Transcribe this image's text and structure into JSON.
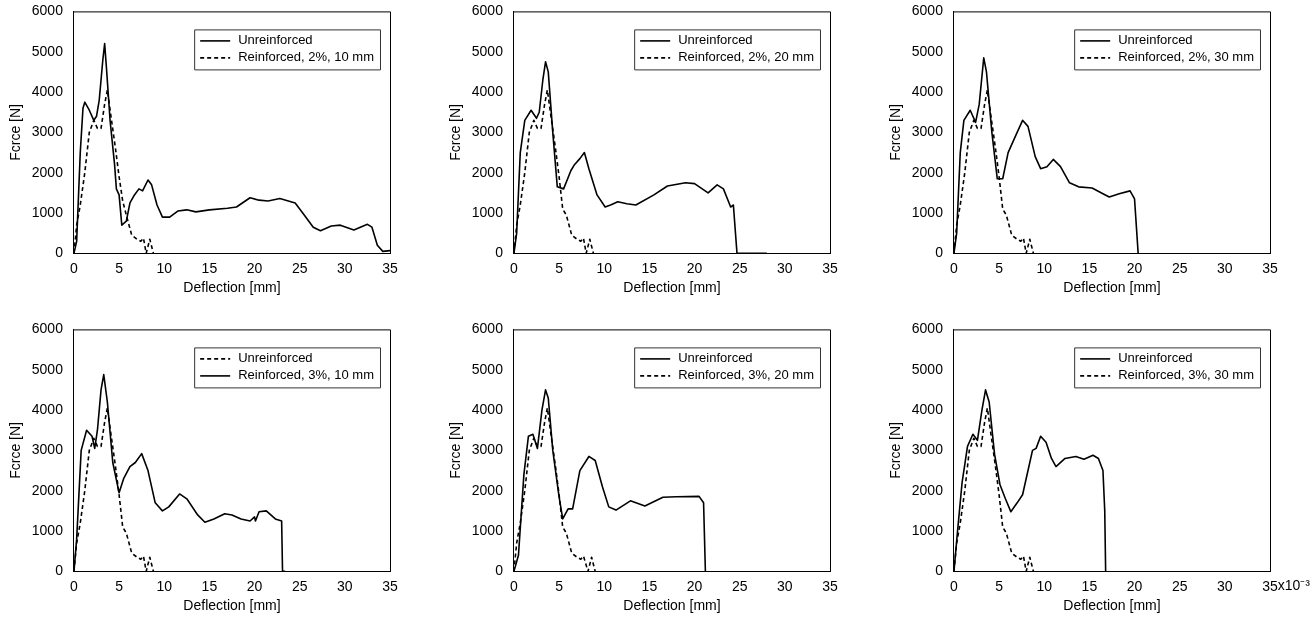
{
  "chart_data": [
    {
      "type": "line",
      "xlabel": "Deflection [mm]",
      "ylabel": "Fcrce [N]",
      "xlim": [
        0,
        35
      ],
      "xticks": [
        0,
        5,
        10,
        15,
        20,
        25,
        30,
        35
      ],
      "ylim": [
        0,
        6000
      ],
      "yticks": [
        0,
        1000,
        2000,
        3000,
        4000,
        5000,
        6000
      ],
      "grid": false,
      "legend": "top right",
      "marker": "none",
      "series": [
        {
          "name": "Unreinforced",
          "color": "#000000",
          "line_style": "solid",
          "x": [
            0,
            0.3,
            0.7,
            1,
            1.2,
            1.7,
            2.2,
            2.5,
            2.8,
            3.2,
            3.4,
            3.6,
            4,
            4.5,
            4.7,
            5,
            5.3,
            5.8,
            6.2,
            6.7,
            7.2,
            7.6,
            8.2,
            8.6,
            9.2,
            9.8,
            10.6,
            11.5,
            12.5,
            13.5,
            15,
            17,
            18,
            19.5,
            20.5,
            21.5,
            22.8,
            24.5,
            25.5,
            26.5,
            27.3,
            28.5,
            29.5,
            31,
            32.5,
            33,
            33.6,
            34.2,
            35
          ],
          "values": [
            0,
            300,
            2500,
            3600,
            3750,
            3550,
            3300,
            3400,
            3800,
            4800,
            5200,
            4600,
            3300,
            2200,
            1600,
            1450,
            700,
            800,
            1250,
            1450,
            1600,
            1550,
            1820,
            1700,
            1200,
            900,
            900,
            1050,
            1080,
            1030,
            1080,
            1120,
            1150,
            1380,
            1320,
            1300,
            1360,
            1250,
            950,
            650,
            560,
            680,
            700,
            580,
            720,
            650,
            200,
            50,
            70
          ]
        },
        {
          "name": "Reinforced, 2%, 10 mm",
          "color": "#000000",
          "line_style": "dashed",
          "x": [
            0,
            0.3,
            0.7,
            1.2,
            1.7,
            2.2,
            2.6,
            3,
            3.4,
            3.7,
            4.1,
            4.6,
            5,
            5.4,
            5.8,
            6.4,
            7,
            7.4,
            7.7,
            8,
            8.4,
            8.8
          ],
          "values": [
            0,
            700,
            1200,
            2000,
            3000,
            3300,
            3100,
            3100,
            3700,
            4050,
            3400,
            2600,
            1900,
            1300,
            950,
            450,
            350,
            300,
            380,
            0,
            350,
            0
          ]
        }
      ]
    },
    {
      "type": "line",
      "xlabel": "Deflection [mm]",
      "ylabel": "Fcrce [N]",
      "xlim": [
        0,
        35
      ],
      "xticks": [
        0,
        5,
        10,
        15,
        20,
        25,
        30,
        35
      ],
      "ylim": [
        0,
        6000
      ],
      "yticks": [
        0,
        1000,
        2000,
        3000,
        4000,
        5000,
        6000
      ],
      "grid": false,
      "legend": "top right",
      "marker": "none",
      "series": [
        {
          "name": "Unreinforced",
          "color": "#000000",
          "line_style": "solid",
          "x": [
            0,
            0.3,
            0.7,
            1.2,
            1.9,
            2.5,
            2.8,
            3.2,
            3.5,
            3.8,
            4.3,
            4.8,
            5.5,
            6.3,
            6.7,
            7.3,
            7.8,
            8.3,
            9.2,
            10.1,
            10.7,
            11.5,
            12.5,
            13.5,
            15.5,
            17,
            19,
            20,
            21.5,
            22.5,
            23.2,
            24,
            24.3,
            24.7,
            28
          ],
          "values": [
            0,
            500,
            2500,
            3300,
            3550,
            3350,
            3500,
            4300,
            4750,
            4500,
            3000,
            1650,
            1600,
            2050,
            2200,
            2350,
            2500,
            2100,
            1450,
            1150,
            1200,
            1280,
            1230,
            1200,
            1450,
            1670,
            1750,
            1730,
            1500,
            1700,
            1600,
            1150,
            1200,
            0,
            0
          ]
        },
        {
          "name": "Reinforced, 2%, 20 mm",
          "color": "#000000",
          "line_style": "dashed",
          "x": [
            0,
            0.3,
            0.7,
            1.2,
            1.7,
            2.2,
            2.6,
            3,
            3.4,
            3.7,
            4.1,
            4.6,
            5,
            5.4,
            5.8,
            6.4,
            7,
            7.4,
            7.7,
            8,
            8.4,
            8.8
          ],
          "values": [
            0,
            700,
            1200,
            2000,
            3000,
            3300,
            3100,
            3100,
            3700,
            4050,
            3400,
            2600,
            1900,
            1100,
            950,
            450,
            350,
            300,
            380,
            0,
            350,
            0
          ]
        }
      ]
    },
    {
      "type": "line",
      "xlabel": "Deflection [mm]",
      "ylabel": "Fcrce [N]",
      "xlim": [
        0,
        35
      ],
      "xticks": [
        0,
        5,
        10,
        15,
        20,
        25,
        30,
        35
      ],
      "ylim": [
        0,
        6000
      ],
      "yticks": [
        0,
        1000,
        2000,
        3000,
        4000,
        5000,
        6000
      ],
      "grid": false,
      "legend": "top right",
      "marker": "none",
      "series": [
        {
          "name": "Unreinforced",
          "color": "#000000",
          "line_style": "solid",
          "x": [
            0,
            0.3,
            0.7,
            1.1,
            1.8,
            2.4,
            2.8,
            3.3,
            3.6,
            4.2,
            4.8,
            5.4,
            6,
            6.8,
            7.6,
            8.2,
            9,
            9.6,
            10.3,
            11,
            11.8,
            12.8,
            13.8,
            15.3,
            16.5,
            17.2,
            18.3,
            19.5,
            20,
            20.4
          ],
          "values": [
            0,
            500,
            2500,
            3300,
            3550,
            3250,
            3700,
            4850,
            4500,
            3000,
            1850,
            1850,
            2500,
            2900,
            3300,
            3150,
            2400,
            2100,
            2150,
            2330,
            2150,
            1750,
            1650,
            1620,
            1480,
            1400,
            1480,
            1550,
            1350,
            0
          ]
        },
        {
          "name": "Reinforced, 2%, 30 mm",
          "color": "#000000",
          "line_style": "dashed",
          "x": [
            0,
            0.3,
            0.7,
            1.2,
            1.7,
            2.2,
            2.6,
            3,
            3.4,
            3.7,
            4.1,
            4.6,
            5,
            5.4,
            5.8,
            6.4,
            7,
            7.4,
            7.7,
            8,
            8.4,
            8.8
          ],
          "values": [
            0,
            700,
            1200,
            2000,
            3000,
            3300,
            3100,
            3100,
            3700,
            4050,
            3400,
            2600,
            1900,
            1100,
            950,
            450,
            350,
            300,
            380,
            0,
            350,
            0
          ]
        }
      ]
    },
    {
      "type": "line",
      "xlabel": "Deflection [mm]",
      "ylabel": "Fcrce [N]",
      "xlim": [
        0,
        35
      ],
      "xticks": [
        0,
        5,
        10,
        15,
        20,
        25,
        30,
        35
      ],
      "ylim": [
        0,
        6000
      ],
      "yticks": [
        0,
        1000,
        2000,
        3000,
        4000,
        5000,
        6000
      ],
      "grid": false,
      "legend": "top right",
      "marker": "none",
      "series": [
        {
          "name": "Unreinforced",
          "color": "#000000",
          "line_style": "dashed",
          "x": [
            0,
            0.3,
            0.7,
            1.2,
            1.7,
            2.2,
            2.6,
            3,
            3.4,
            3.7,
            4.1,
            4.6,
            5,
            5.4,
            5.8,
            6.4,
            7,
            7.4,
            7.7,
            8,
            8.4,
            8.8
          ],
          "values": [
            0,
            700,
            1200,
            2000,
            3000,
            3300,
            3100,
            3100,
            3700,
            4050,
            3400,
            2600,
            1900,
            1100,
            950,
            450,
            350,
            300,
            380,
            0,
            350,
            0
          ]
        },
        {
          "name": "Reinforced, 3%, 10 mm",
          "color": "#000000",
          "line_style": "solid",
          "x": [
            0,
            0.3,
            0.8,
            1.4,
            2,
            2.3,
            2.6,
            3,
            3.3,
            3.7,
            4.3,
            5,
            5.5,
            6.2,
            6.8,
            7.5,
            8.2,
            9,
            9.8,
            10.5,
            11.7,
            12.5,
            13.7,
            14.5,
            15.5,
            16.7,
            17.5,
            18.5,
            19.5,
            20,
            20.1,
            20.5,
            21.3,
            22.3,
            23,
            23.1,
            23.4
          ],
          "values": [
            0,
            800,
            3000,
            3500,
            3350,
            3050,
            3500,
            4500,
            4880,
            4200,
            2700,
            1950,
            2300,
            2600,
            2700,
            2920,
            2500,
            1700,
            1500,
            1600,
            1920,
            1800,
            1400,
            1220,
            1300,
            1430,
            1400,
            1300,
            1250,
            1350,
            1250,
            1480,
            1500,
            1300,
            1250,
            0,
            0
          ]
        }
      ]
    },
    {
      "type": "line",
      "xlabel": "Deflection [mm]",
      "ylabel": "Fcrce [N]",
      "xlim": [
        0,
        35
      ],
      "xticks": [
        0,
        5,
        10,
        15,
        20,
        25,
        30,
        35
      ],
      "ylim": [
        0,
        6000
      ],
      "yticks": [
        0,
        1000,
        2000,
        3000,
        4000,
        5000,
        6000
      ],
      "grid": false,
      "legend": "top right",
      "marker": "none",
      "series": [
        {
          "name": "Unreinforced",
          "color": "#000000",
          "line_style": "solid",
          "x": [
            0,
            0.5,
            1.1,
            1.6,
            2.1,
            2.6,
            3.1,
            3.5,
            3.8,
            4.3,
            5,
            5.4,
            6,
            6.5,
            7.3,
            8.3,
            9,
            9.8,
            10.5,
            11.3,
            12.9,
            14.5,
            16.5,
            18,
            20.5,
            21,
            21.2
          ],
          "values": [
            0,
            400,
            2400,
            3350,
            3400,
            3050,
            4000,
            4500,
            4300,
            3000,
            1850,
            1300,
            1550,
            1550,
            2500,
            2850,
            2750,
            2100,
            1600,
            1520,
            1750,
            1620,
            1840,
            1850,
            1860,
            1700,
            0
          ]
        },
        {
          "name": "Reinforced, 3%, 20 mm",
          "color": "#000000",
          "line_style": "dashed",
          "x": [
            0,
            0.3,
            0.7,
            1.2,
            1.7,
            2.2,
            2.6,
            3,
            3.4,
            3.7,
            4.1,
            4.6,
            5,
            5.4,
            5.8,
            6.4,
            7,
            7.4,
            7.7,
            8.2,
            8.6,
            9
          ],
          "values": [
            0,
            700,
            1200,
            2000,
            3000,
            3300,
            3100,
            3100,
            3700,
            4050,
            3400,
            2600,
            1900,
            1100,
            950,
            450,
            350,
            300,
            380,
            0,
            350,
            0
          ]
        }
      ]
    },
    {
      "type": "line",
      "xlabel": "Deflection [mm]",
      "ylabel": "Fcrce [N]",
      "xlim": [
        0,
        35
      ],
      "xticks": [
        0,
        5,
        10,
        15,
        20,
        25,
        30,
        35
      ],
      "annotations": [
        "x10⁻³"
      ],
      "ylim": [
        0,
        6000
      ],
      "yticks": [
        0,
        1000,
        2000,
        3000,
        4000,
        5000,
        6000
      ],
      "grid": false,
      "legend": "top right",
      "marker": "none",
      "series": [
        {
          "name": "Unreinforced",
          "color": "#000000",
          "line_style": "solid",
          "x": [
            0,
            0.4,
            0.9,
            1.5,
            2.1,
            2.6,
            3.1,
            3.5,
            3.9,
            4.5,
            5.1,
            5.7,
            6.3,
            7,
            7.6,
            8.3,
            8.7,
            9.1,
            9.6,
            10.2,
            10.8,
            11.3,
            12.3,
            13.5,
            14.4,
            15.4,
            16,
            16.5,
            16.7,
            16.8
          ],
          "values": [
            0,
            1000,
            2200,
            3100,
            3400,
            3250,
            4000,
            4500,
            4200,
            2900,
            2150,
            1800,
            1480,
            1700,
            1900,
            2600,
            3000,
            3050,
            3350,
            3200,
            2800,
            2600,
            2800,
            2850,
            2780,
            2880,
            2800,
            2500,
            1500,
            0
          ]
        },
        {
          "name": "Reinforced, 3%, 30 mm",
          "color": "#000000",
          "line_style": "dashed",
          "x": [
            0,
            0.3,
            0.7,
            1.2,
            1.7,
            2.2,
            2.6,
            3,
            3.4,
            3.7,
            4.1,
            4.6,
            5,
            5.4,
            5.8,
            6.4,
            7,
            7.4,
            7.7,
            8,
            8.4,
            8.8
          ],
          "values": [
            0,
            700,
            1200,
            2000,
            3000,
            3300,
            3100,
            3100,
            3700,
            4050,
            3400,
            2600,
            1900,
            1100,
            950,
            450,
            350,
            300,
            380,
            0,
            350,
            0
          ]
        }
      ]
    }
  ]
}
